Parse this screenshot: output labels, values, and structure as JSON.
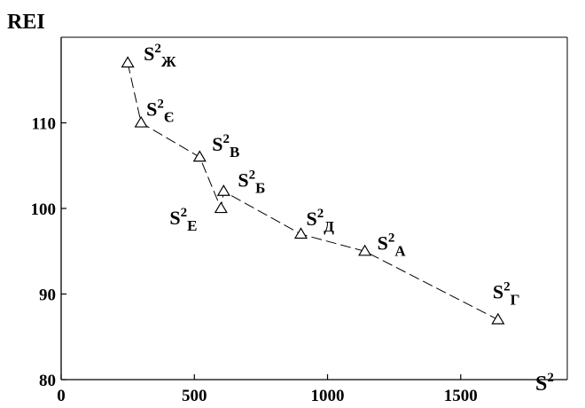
{
  "chart_data": {
    "type": "scatter",
    "ylabel": "REI",
    "xlabel": "S²",
    "xlim": [
      0,
      1900
    ],
    "ylim": [
      80,
      120
    ],
    "x_ticks": [
      0,
      500,
      1000,
      1500
    ],
    "y_ticks": [
      80,
      90,
      100,
      110
    ],
    "grid": false,
    "marker": "triangle",
    "line_style": "dashed",
    "points": [
      {
        "base": "S",
        "sup": "2",
        "sub": "Ж",
        "x": 250,
        "y": 117
      },
      {
        "base": "S",
        "sup": "2",
        "sub": "Є",
        "x": 300,
        "y": 110
      },
      {
        "base": "S",
        "sup": "2",
        "sub": "В",
        "x": 520,
        "y": 106
      },
      {
        "base": "S",
        "sup": "2",
        "sub": "Б",
        "x": 610,
        "y": 102
      },
      {
        "base": "S",
        "sup": "2",
        "sub": "Е",
        "x": 600,
        "y": 100
      },
      {
        "base": "S",
        "sup": "2",
        "sub": "Д",
        "x": 900,
        "y": 97
      },
      {
        "base": "S",
        "sup": "2",
        "sub": "А",
        "x": 1140,
        "y": 95
      },
      {
        "base": "S",
        "sup": "2",
        "sub": "Г",
        "x": 1640,
        "y": 87
      }
    ],
    "path_order": [
      0,
      1,
      2,
      4,
      3,
      5,
      6,
      7
    ]
  }
}
